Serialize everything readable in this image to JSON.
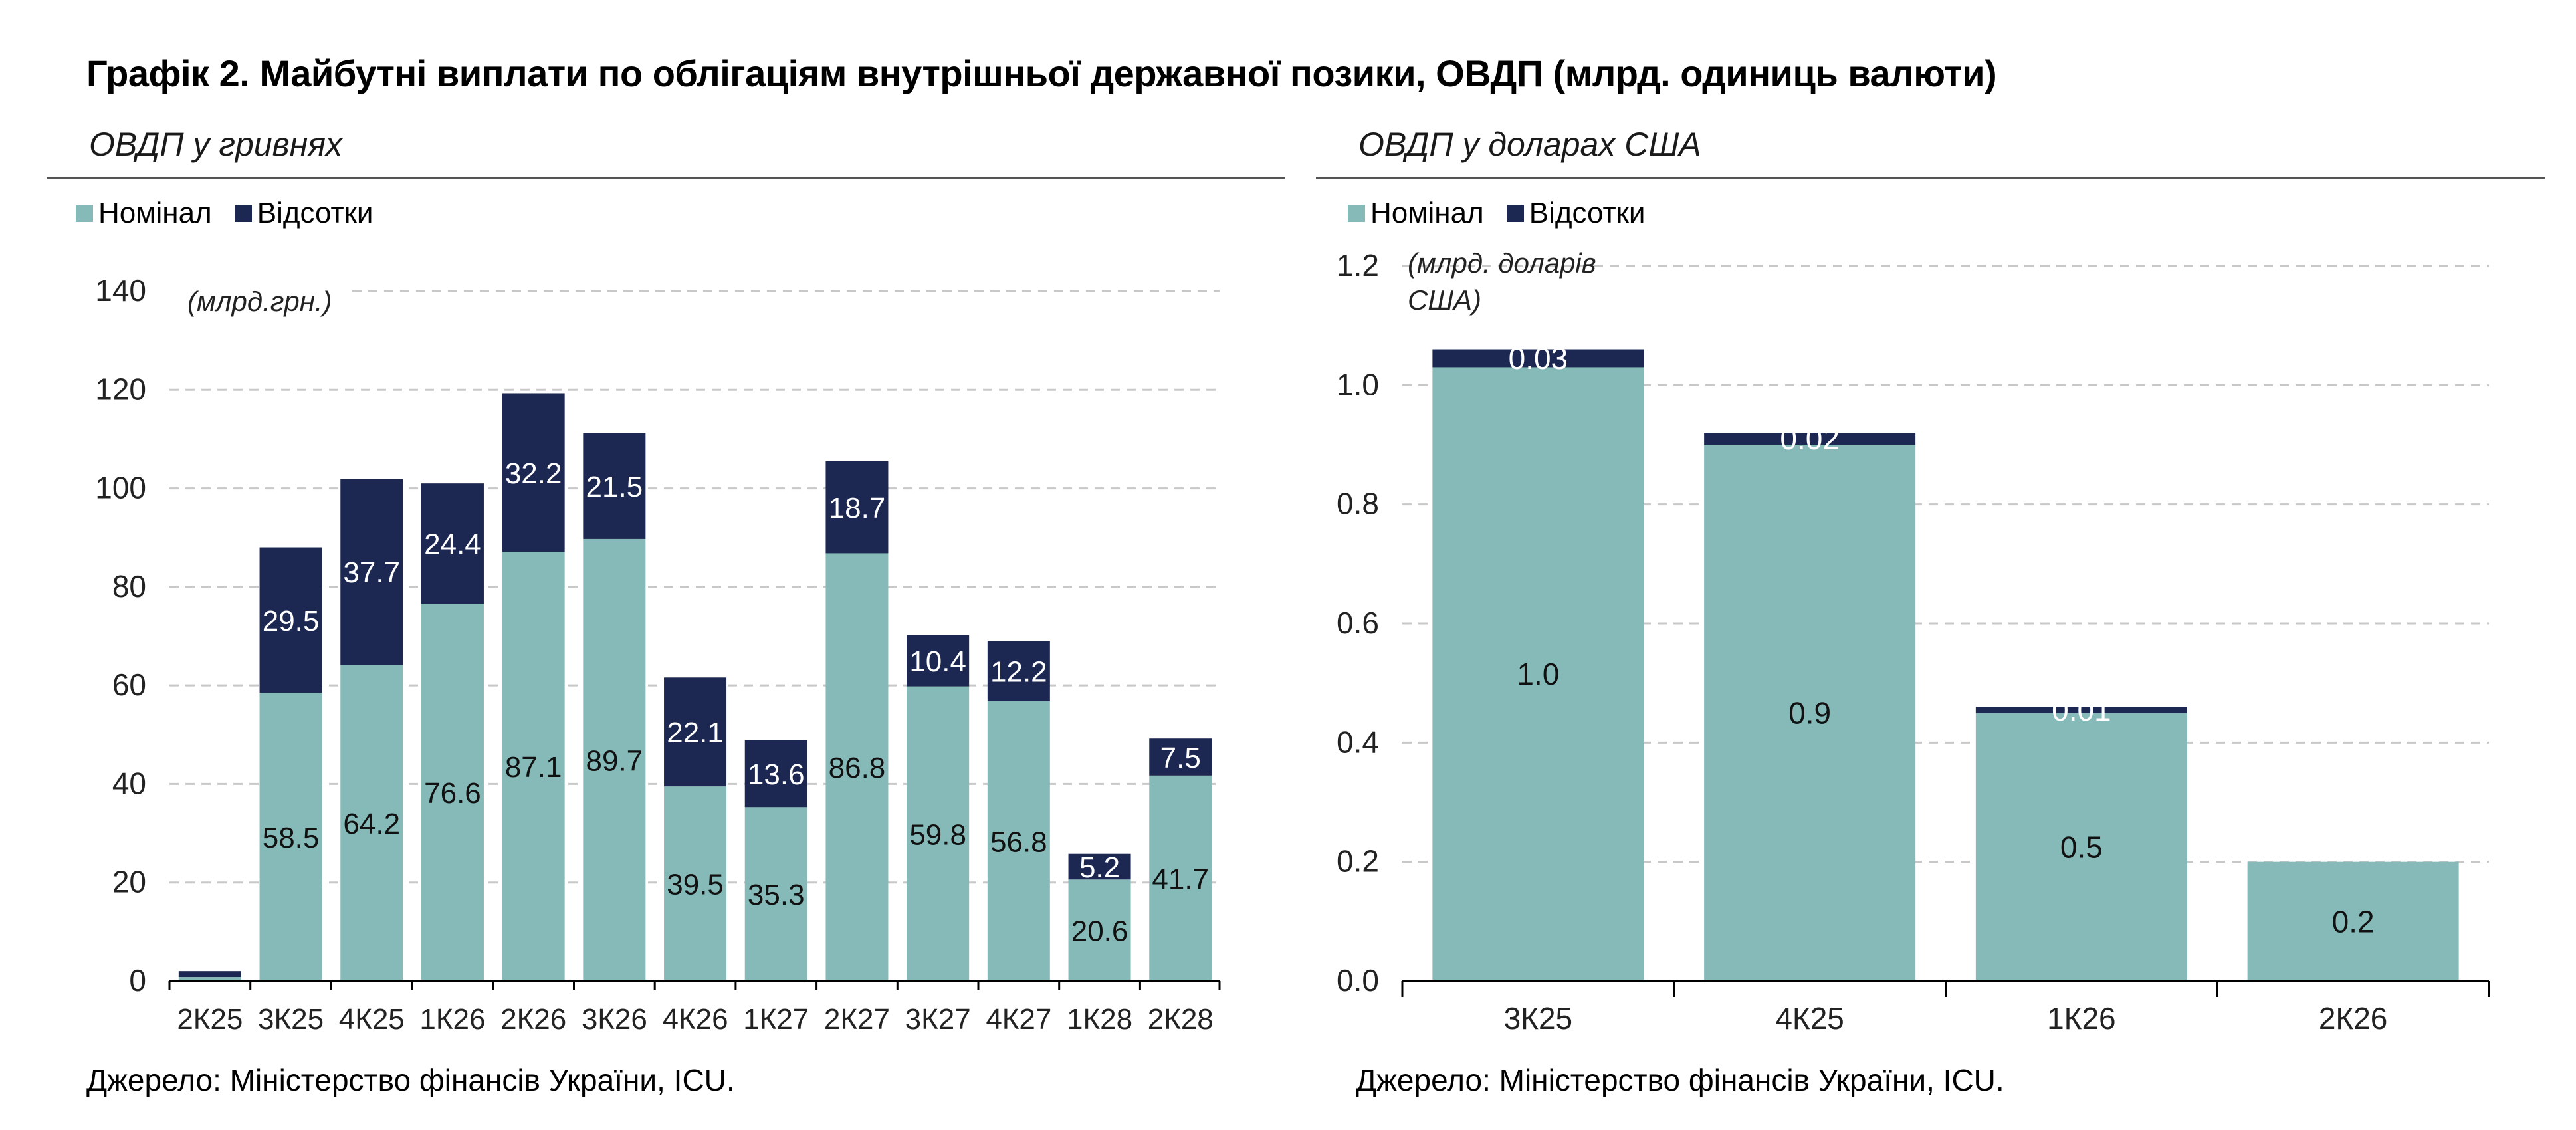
{
  "figure_title": "Графік 2. Майбутні виплати по облігаціям внутрішньої державної позики, ОВДП (млрд. одиниць валюти)",
  "colors": {
    "nominal": "#86bab8",
    "interest": "#1c2851",
    "grid": "#c8c8c8"
  },
  "panels": [
    {
      "title": "ОВДП у гривнях",
      "legend": [
        {
          "label": "Номінал",
          "color": "#86bab8"
        },
        {
          "label": "Відсотки",
          "color": "#1c2851"
        }
      ],
      "unit_note": "(млрд.грн.)",
      "source": "Джерело: Міністерство фінансів України, ICU."
    },
    {
      "title": "ОВДП у доларах США",
      "legend": [
        {
          "label": "Номінал",
          "color": "#86bab8"
        },
        {
          "label": "Відсотки",
          "color": "#1c2851"
        }
      ],
      "unit_note": "(млрд. доларів США)",
      "source": "Джерело: Міністерство фінансів України, ICU."
    }
  ],
  "chart_data": [
    {
      "type": "bar",
      "stacked": true,
      "title": "ОВДП у гривнях",
      "ylim": [
        0,
        140
      ],
      "yticks": [
        "0",
        "20",
        "40",
        "60",
        "80",
        "100",
        "120",
        "140"
      ],
      "grid": true,
      "legend_position": "top-left",
      "categories": [
        "2К25",
        "3К25",
        "4К25",
        "1К26",
        "2К26",
        "3К26",
        "4К26",
        "1К27",
        "2К27",
        "3К27",
        "4К27",
        "1К28",
        "2К28"
      ],
      "series": [
        {
          "name": "Номінал",
          "color": "#86bab8",
          "values": [
            0.8,
            58.5,
            64.2,
            76.6,
            87.1,
            89.7,
            39.5,
            35.3,
            86.8,
            59.8,
            56.8,
            20.6,
            41.7
          ],
          "labels": [
            "",
            "58.5",
            "64.2",
            "76.6",
            "87.1",
            "89.7",
            "39.5",
            "35.3",
            "86.8",
            "59.8",
            "56.8",
            "20.6",
            "41.7"
          ]
        },
        {
          "name": "Відсотки",
          "color": "#1c2851",
          "values": [
            1.2,
            29.5,
            37.7,
            24.4,
            32.2,
            21.5,
            22.1,
            13.6,
            18.7,
            10.4,
            12.2,
            5.2,
            7.5
          ],
          "labels": [
            "",
            "29.5",
            "37.7",
            "24.4",
            "32.2",
            "21.5",
            "22.1",
            "13.6",
            "18.7",
            "10.4",
            "12.2",
            "5.2",
            "7.5"
          ]
        }
      ]
    },
    {
      "type": "bar",
      "stacked": true,
      "title": "ОВДП у доларах США",
      "ylim": [
        0,
        1.2
      ],
      "yticks": [
        "0.0",
        "0.2",
        "0.4",
        "0.6",
        "0.8",
        "1.0",
        "1.2"
      ],
      "grid": true,
      "legend_position": "top-left",
      "categories": [
        "3К25",
        "4К25",
        "1К26",
        "2К26"
      ],
      "series": [
        {
          "name": "Номінал",
          "color": "#86bab8",
          "values": [
            1.03,
            0.9,
            0.45,
            0.2
          ],
          "labels": [
            "1.0",
            "0.9",
            "0.5",
            "0.2"
          ]
        },
        {
          "name": "Відсотки",
          "color": "#1c2851",
          "values": [
            0.03,
            0.02,
            0.01,
            0
          ],
          "labels": [
            "0.03",
            "0.02",
            "0.01",
            ""
          ]
        }
      ]
    }
  ]
}
